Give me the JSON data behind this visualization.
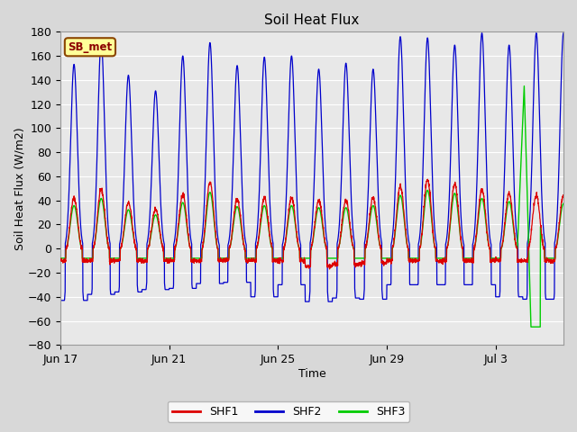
{
  "title": "Soil Heat Flux",
  "xlabel": "Time",
  "ylabel": "Soil Heat Flux (W/m2)",
  "ylim": [
    -80,
    180
  ],
  "yticks": [
    -80,
    -60,
    -40,
    -20,
    0,
    20,
    40,
    60,
    80,
    100,
    120,
    140,
    160,
    180
  ],
  "fig_bg_color": "#d8d8d8",
  "plot_bg_color": "#e8e8e8",
  "series_colors": {
    "SHF1": "#dd0000",
    "SHF2": "#0000cc",
    "SHF3": "#00cc00"
  },
  "x_tick_labels": [
    "Jun 17",
    "Jun 21",
    "Jun 25",
    "Jun 29",
    "Jul 3"
  ],
  "x_tick_positions": [
    0,
    4,
    8,
    12,
    16
  ],
  "num_days": 18.5,
  "annotation_text": "SB_met",
  "legend_box_color": "#ffff99",
  "legend_box_edge": "#8b4500",
  "shf2_day_peaks": [
    153,
    173,
    144,
    131,
    160,
    171,
    152,
    159,
    160,
    149,
    154,
    149,
    176,
    175,
    169,
    179,
    169,
    179
  ],
  "shf1_day_peaks": [
    42,
    49,
    38,
    33,
    45,
    55,
    41,
    42,
    42,
    40,
    40,
    42,
    52,
    57,
    54,
    49,
    46,
    44
  ],
  "shf2_night_vals": [
    -43,
    -38,
    -36,
    -34,
    -33,
    -29,
    -28,
    -40,
    -30,
    -44,
    -41,
    -42,
    -30,
    -30,
    -30,
    -30,
    -40,
    -42
  ],
  "shf1_night_vals": [
    -10,
    -10,
    -10,
    -10,
    -10,
    -10,
    -10,
    -10,
    -10,
    -15,
    -13,
    -12,
    -10,
    -10,
    -10,
    -10,
    -10,
    -10
  ]
}
